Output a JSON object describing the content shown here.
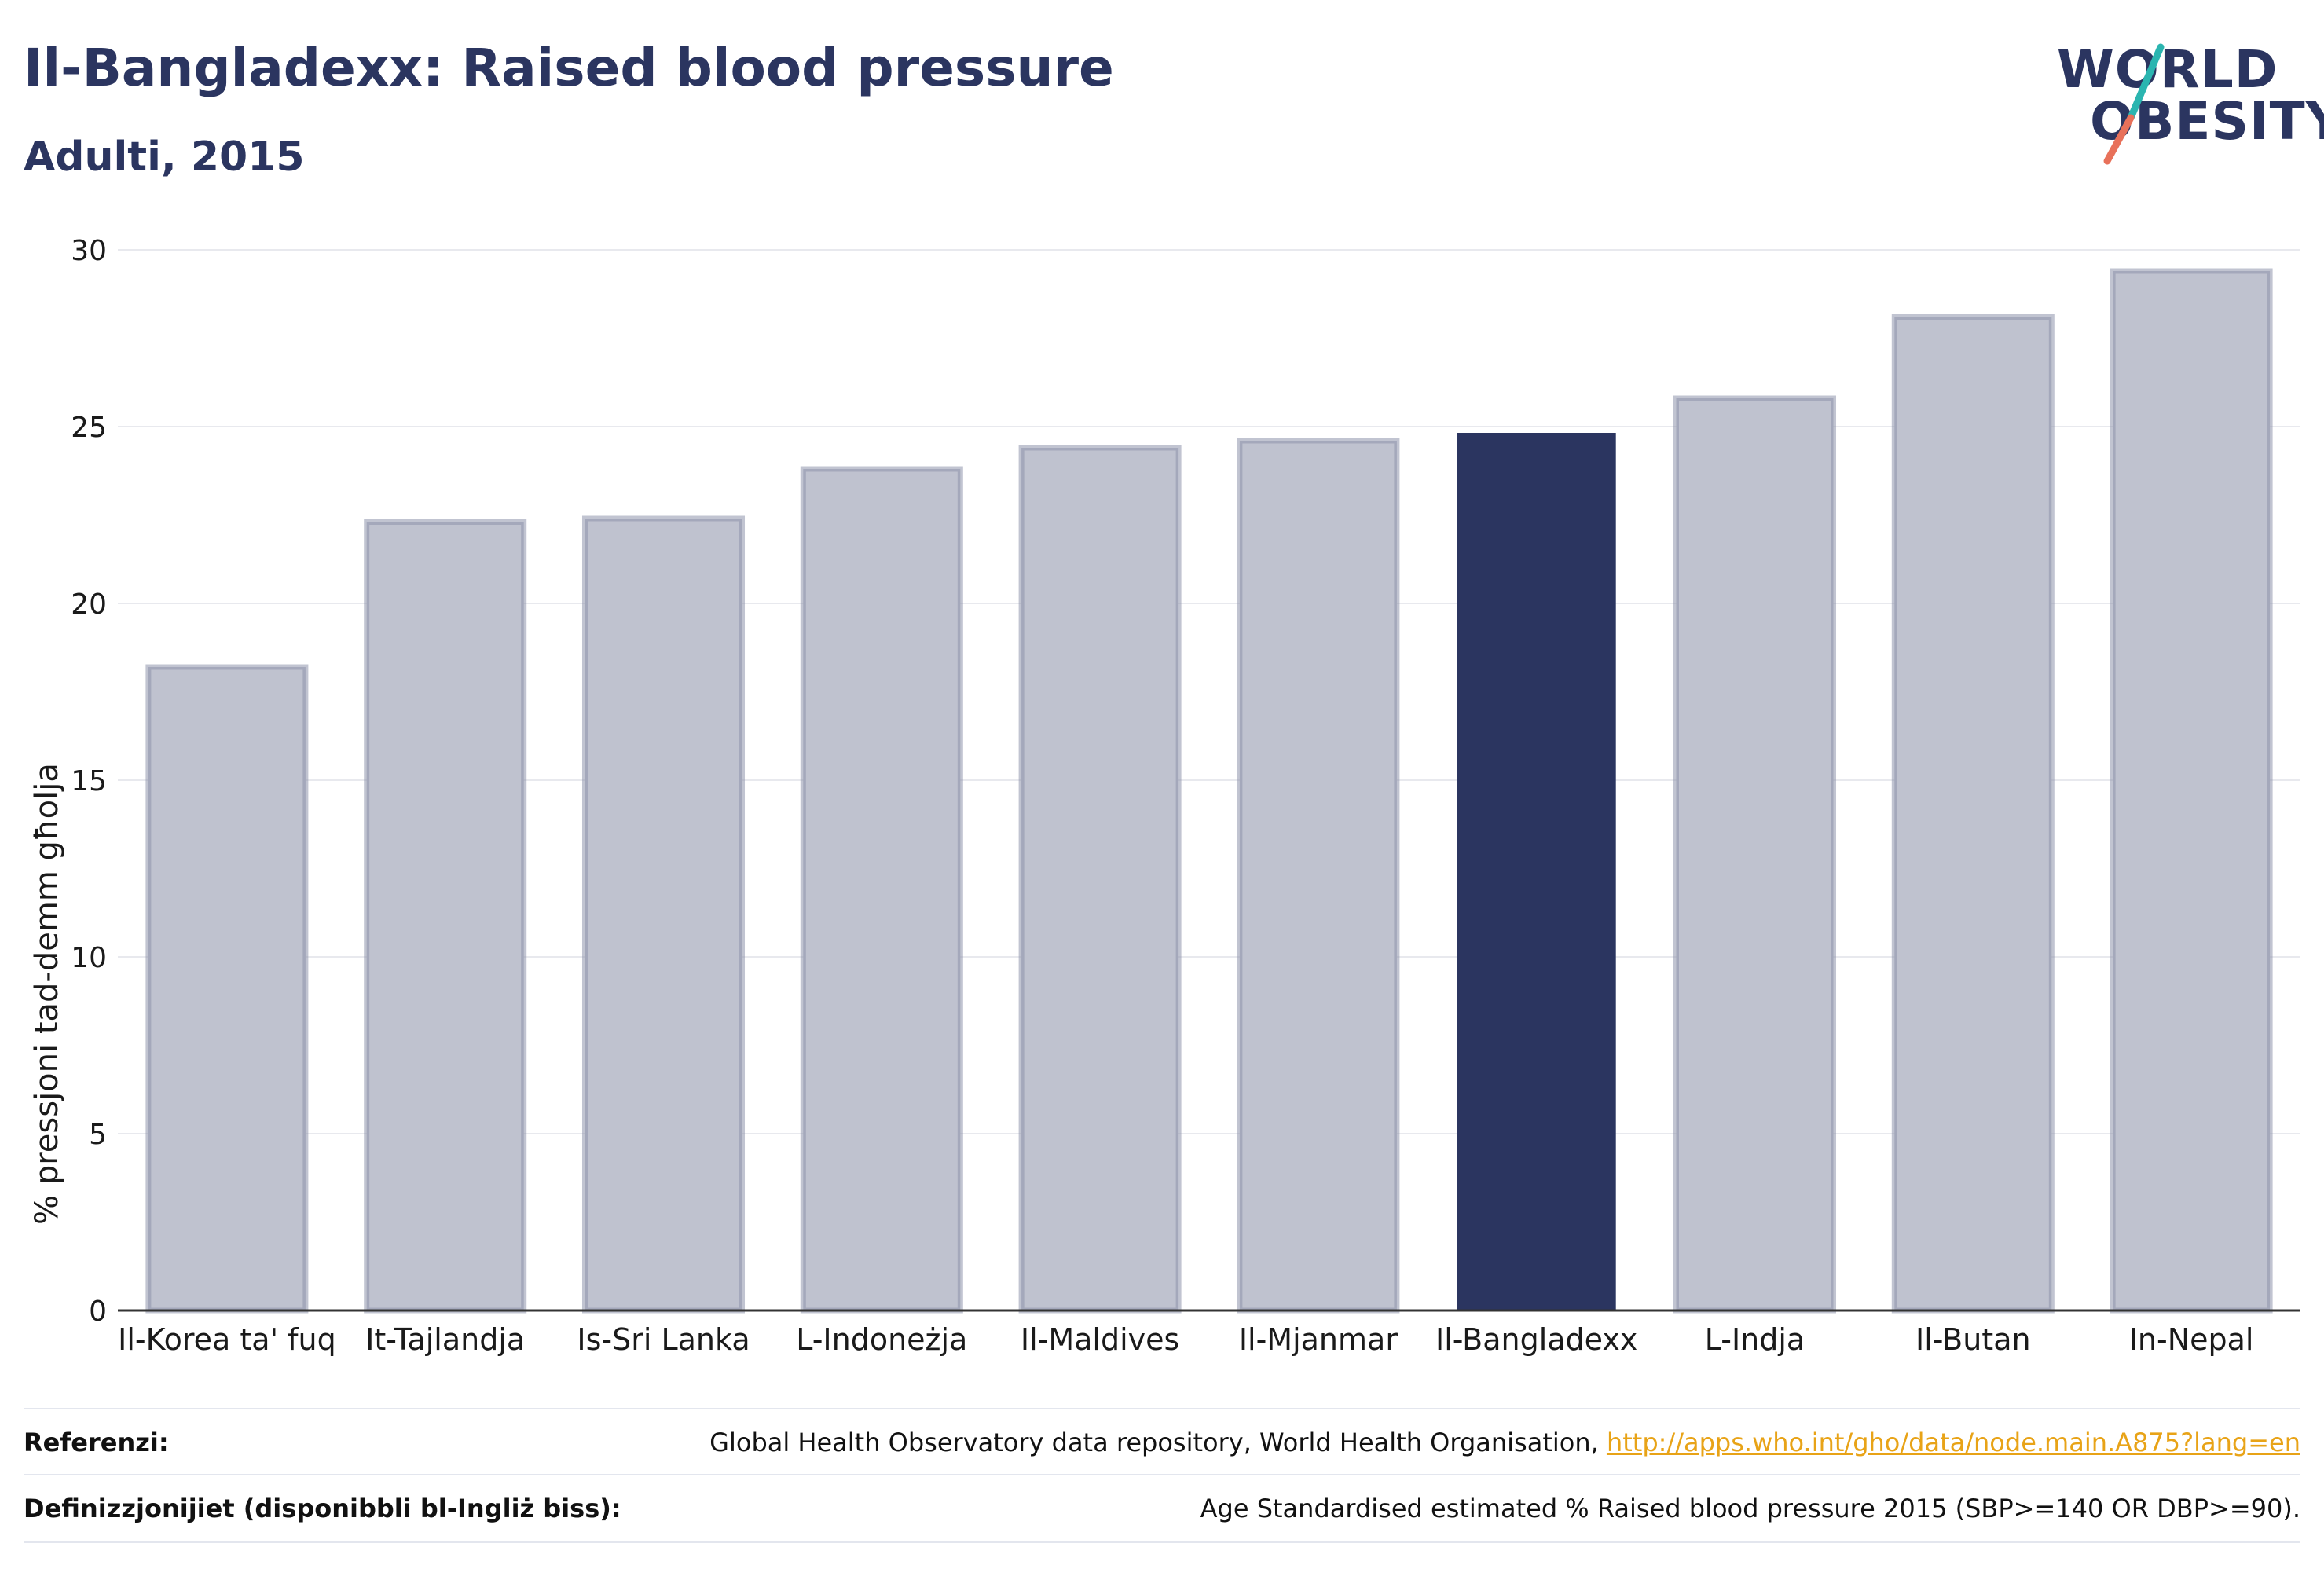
{
  "header": {
    "title": "Il-Bangladexx: Raised blood pressure",
    "subtitle": "Adulti, 2015"
  },
  "logo": {
    "line1": "WORLD",
    "line2": "OBESITY",
    "colors": {
      "text": "#2b3560",
      "slash_top": "#2bb5b0",
      "slash_bottom": "#e8715a"
    }
  },
  "chart_data": {
    "type": "bar",
    "title": "",
    "xlabel": "",
    "ylabel": "% pressjoni tad-demm għolja",
    "ylim": [
      0,
      30
    ],
    "yticks": [
      0,
      5,
      10,
      15,
      20,
      25,
      30
    ],
    "grid": true,
    "categories": [
      "Il-Korea ta' fuq",
      "It-Tajlandja",
      "Is-Sri Lanka",
      "L-Indoneżja",
      "Il-Maldives",
      "Il-Mjanmar",
      "Il-Bangladexx",
      "L-Indja",
      "Il-Butan",
      "In-Nepal"
    ],
    "values": [
      18.2,
      22.3,
      22.4,
      23.8,
      24.4,
      24.6,
      24.8,
      25.8,
      28.1,
      29.4
    ],
    "highlight": "Il-Bangladexx",
    "colors": {
      "bar": "#bfc2cf",
      "bar_border": "#8e93ab",
      "highlight": "#2b3560",
      "grid": "#e8e9ee",
      "axis": "#333333"
    }
  },
  "footer": {
    "references_label": "Referenzi:",
    "references_text": "Global Health Observatory data repository, World Health Organisation,",
    "references_link": "http://apps.who.int/gho/data/node.main.A875?lang=en",
    "definitions_label": "Definizzjonijiet (disponibbli bl-Ingliż biss):",
    "definitions_text": "Age Standardised estimated % Raised blood pressure 2015 (SBP>=140 OR DBP>=90)."
  }
}
